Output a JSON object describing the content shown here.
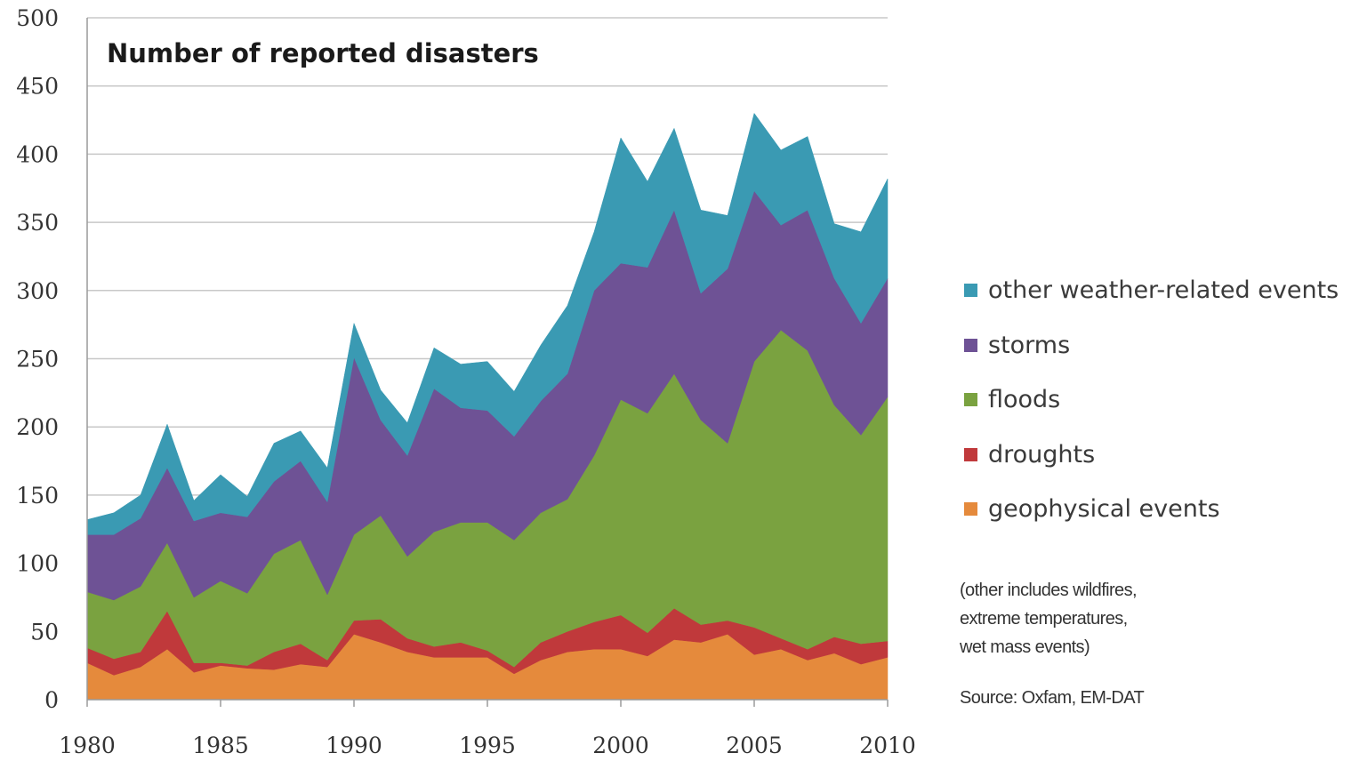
{
  "chart_data": {
    "type": "area",
    "stacked": true,
    "title": "Number of reported disasters",
    "x": [
      1980,
      1981,
      1982,
      1983,
      1984,
      1985,
      1986,
      1987,
      1988,
      1989,
      1990,
      1991,
      1992,
      1993,
      1994,
      1995,
      1996,
      1997,
      1998,
      1999,
      2000,
      2001,
      2002,
      2003,
      2004,
      2005,
      2006,
      2007,
      2008,
      2009,
      2010
    ],
    "x_ticks": [
      "1980",
      "1985",
      "1990",
      "1995",
      "2000",
      "2005",
      "2010"
    ],
    "y_ticks": [
      "0",
      "50",
      "100",
      "150",
      "200",
      "250",
      "300",
      "350",
      "400",
      "450",
      "500"
    ],
    "ylim": [
      0,
      500
    ],
    "grid": "horizontal",
    "legend_position": "right",
    "series": [
      {
        "name": "geophysical events",
        "color": "#e58a3c",
        "values": [
          27,
          18,
          24,
          37,
          20,
          25,
          23,
          22,
          26,
          24,
          48,
          42,
          35,
          31,
          31,
          31,
          19,
          29,
          35,
          37,
          37,
          32,
          44,
          42,
          48,
          33,
          37,
          29,
          34,
          26,
          31
        ]
      },
      {
        "name": "droughts",
        "color": "#c0393b",
        "values": [
          11,
          12,
          11,
          28,
          7,
          2,
          2,
          13,
          15,
          5,
          10,
          17,
          10,
          8,
          11,
          5,
          5,
          13,
          15,
          20,
          25,
          17,
          23,
          13,
          10,
          20,
          8,
          8,
          12,
          15,
          12
        ]
      },
      {
        "name": "floods",
        "color": "#7aa240",
        "values": [
          41,
          43,
          48,
          50,
          48,
          60,
          53,
          72,
          76,
          48,
          63,
          76,
          60,
          84,
          88,
          94,
          93,
          95,
          97,
          122,
          158,
          161,
          172,
          150,
          130,
          195,
          226,
          219,
          170,
          153,
          179
        ]
      },
      {
        "name": "storms",
        "color": "#6e5295",
        "values": [
          42,
          48,
          50,
          55,
          56,
          50,
          56,
          53,
          58,
          68,
          130,
          70,
          74,
          105,
          84,
          82,
          76,
          82,
          92,
          121,
          100,
          107,
          120,
          93,
          128,
          125,
          77,
          103,
          93,
          82,
          87
        ]
      },
      {
        "name": "other weather-related events",
        "color": "#3a9ab3",
        "values": [
          11,
          16,
          17,
          32,
          15,
          28,
          15,
          28,
          22,
          25,
          25,
          22,
          24,
          30,
          32,
          36,
          33,
          41,
          50,
          43,
          92,
          63,
          60,
          61,
          39,
          57,
          55,
          54,
          40,
          67,
          73
        ]
      }
    ]
  },
  "legend": {
    "items": [
      {
        "label": "other weather-related events",
        "color": "#3a9ab3"
      },
      {
        "label": "storms",
        "color": "#6e5295"
      },
      {
        "label": "floods",
        "color": "#7aa240"
      },
      {
        "label": "droughts",
        "color": "#c0393b"
      },
      {
        "label": "geophysical events",
        "color": "#e58a3c"
      }
    ]
  },
  "note": {
    "lines": [
      "(other includes wildfires,",
      "extreme temperatures,",
      "wet mass events)"
    ]
  },
  "source": "Source: Oxfam, EM-DAT"
}
